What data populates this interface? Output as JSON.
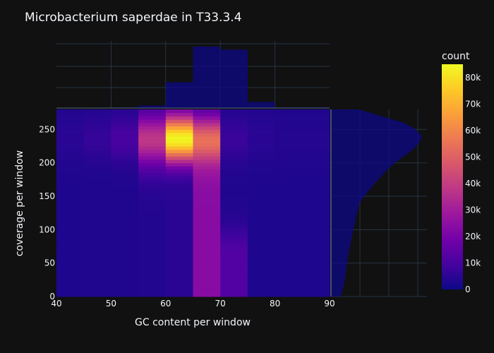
{
  "chart_data": {
    "type": "heatmap",
    "title": "Microbacterium saperdae in T33.3.4",
    "xlabel": "GC content per window",
    "ylabel": "coverage per window",
    "xlim": [
      40,
      90
    ],
    "ylim": [
      0,
      280
    ],
    "x_ticks": [
      "40",
      "50",
      "60",
      "70",
      "80",
      "90"
    ],
    "y_ticks": [
      "0",
      "50",
      "100",
      "150",
      "200",
      "250"
    ],
    "x_bin_edges": [
      40,
      45,
      50,
      55,
      60,
      65,
      70,
      75,
      80,
      85,
      90
    ],
    "colorbar": {
      "title": "count",
      "range": [
        0,
        85000
      ],
      "ticks": [
        "0",
        "10k",
        "20k",
        "30k",
        "40k",
        "50k",
        "60k",
        "70k",
        "80k"
      ],
      "colorscale": [
        "#0d0887",
        "#46039f",
        "#7201a8",
        "#9c179e",
        "#bd3786",
        "#d8576b",
        "#ed7953",
        "#fb9f3a",
        "#fdca26",
        "#f0f921"
      ]
    },
    "marginal_x": {
      "type": "histogram",
      "x_bins": [
        "40-50",
        "50-55",
        "55-60",
        "60-65",
        "65-70",
        "70-75",
        "75-80",
        "80-90"
      ],
      "relative_heights": [
        0,
        0.01,
        0.04,
        0.42,
        1.0,
        0.95,
        0.1,
        0.01
      ]
    },
    "marginal_y": {
      "type": "histogram",
      "y": [
        0,
        10,
        20,
        40,
        60,
        80,
        100,
        120,
        140,
        150,
        160,
        170,
        180,
        190,
        200,
        210,
        220,
        230,
        240,
        250,
        260,
        270,
        280
      ],
      "relative_widths": [
        0.1,
        0.12,
        0.14,
        0.16,
        0.18,
        0.21,
        0.24,
        0.27,
        0.31,
        0.36,
        0.42,
        0.48,
        0.55,
        0.62,
        0.7,
        0.8,
        0.9,
        0.97,
        1.0,
        0.93,
        0.8,
        0.55,
        0.3
      ]
    }
  }
}
